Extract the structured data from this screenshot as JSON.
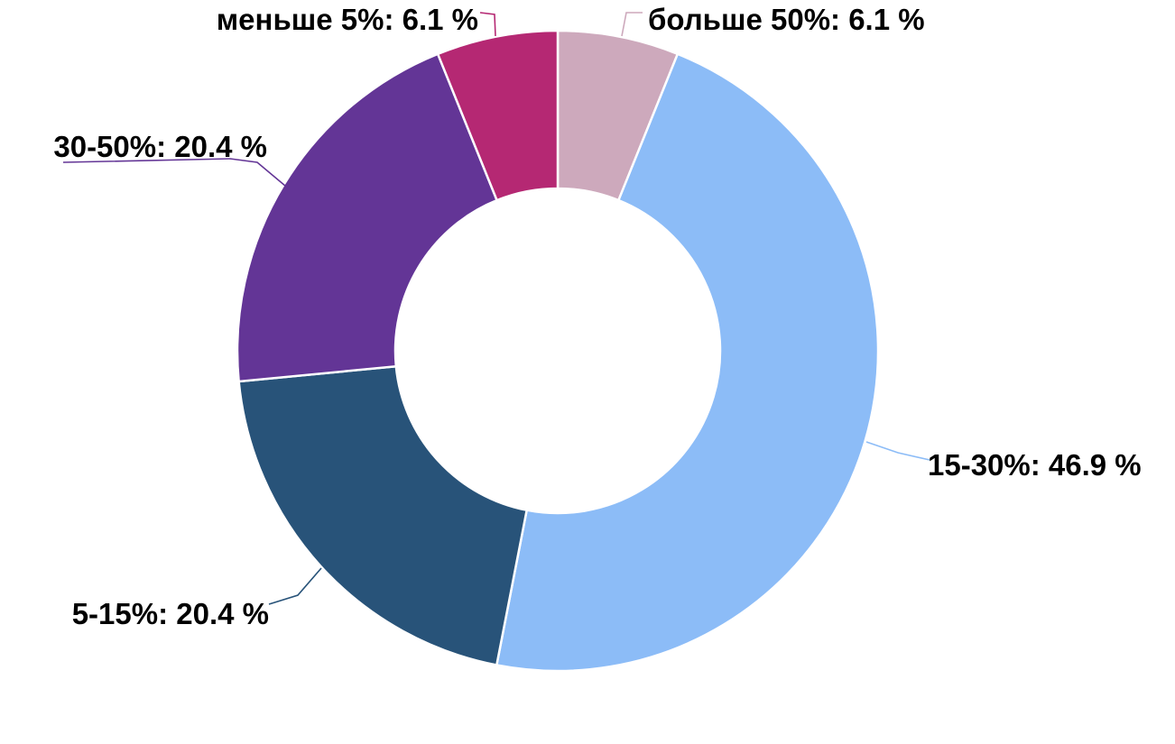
{
  "chart_data": {
    "type": "pie",
    "variant": "donut",
    "slices": [
      {
        "label": "больше 50%",
        "value": 6.1,
        "display": "больше 50%: 6.1 %",
        "color": "#CDA9BC"
      },
      {
        "label": "15-30%",
        "value": 46.9,
        "display": "15-30%: 46.9 %",
        "color": "#8CBCF7"
      },
      {
        "label": "5-15%",
        "value": 20.4,
        "display": "5-15%: 20.4 %",
        "color": "#285379"
      },
      {
        "label": "30-50%",
        "value": 20.4,
        "display": "30-50%: 20.4 %",
        "color": "#633596"
      },
      {
        "label": "меньше 5%",
        "value": 6.1,
        "display": "меньше 5%: 6.1 %",
        "color": "#B52873"
      }
    ],
    "legend": "none",
    "title": ""
  }
}
